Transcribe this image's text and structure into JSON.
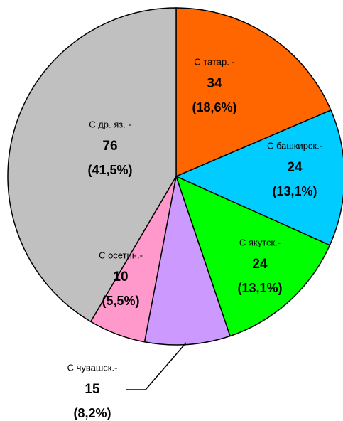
{
  "chart_data": {
    "type": "pie",
    "categories": [
      "С татар. -",
      "С башкирск.-",
      "С якутск.-",
      "С чувашск.-",
      "С осетин.-",
      "С др. яз. -"
    ],
    "values": [
      34,
      24,
      24,
      15,
      10,
      76
    ],
    "percent_labels": [
      "(18,6%)",
      "(13,1%)",
      "(13,1%)",
      "(8,2%)",
      "(5,5%)",
      "(41,5%)"
    ],
    "colors": [
      "#ff6600",
      "#00ccff",
      "#00ff00",
      "#cc99ff",
      "#ff99cc",
      "#c0c0c0"
    ]
  }
}
